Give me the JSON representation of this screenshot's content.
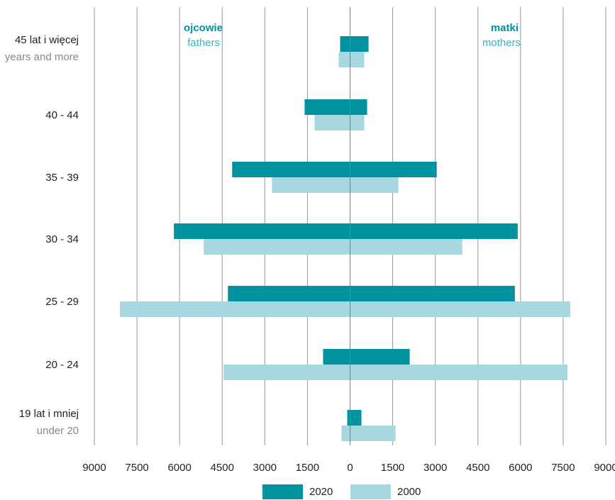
{
  "chart_data": {
    "type": "bar",
    "orientation": "horizontal-butterfly",
    "categories": [
      {
        "label": "45 lat i więcej",
        "sublabel": "years and more"
      },
      {
        "label": "40 - 44",
        "sublabel": ""
      },
      {
        "label": "35 - 39",
        "sublabel": ""
      },
      {
        "label": "30 - 34",
        "sublabel": ""
      },
      {
        "label": "25 - 29",
        "sublabel": ""
      },
      {
        "label": "20 - 24",
        "sublabel": ""
      },
      {
        "label": "19 lat i mniej",
        "sublabel": "under 20"
      }
    ],
    "sides": {
      "left": {
        "label": "ojcowie",
        "sublabel": "fathers"
      },
      "right": {
        "label": "matki",
        "sublabel": "mothers"
      }
    },
    "series": [
      {
        "name": "2020",
        "color": "#00929f",
        "fathers": [
          350,
          1600,
          4150,
          6200,
          4300,
          950,
          100
        ],
        "mothers": [
          650,
          600,
          3050,
          5900,
          5800,
          2100,
          400
        ]
      },
      {
        "name": "2000",
        "color": "#a7d8df",
        "fathers": [
          400,
          1250,
          2750,
          5150,
          8100,
          4450,
          300
        ],
        "mothers": [
          500,
          500,
          1700,
          3950,
          7750,
          7650,
          1600
        ]
      }
    ],
    "xticks": [
      "9000",
      "7500",
      "6000",
      "4500",
      "3000",
      "1500",
      "0",
      "1500",
      "3000",
      "4500",
      "6000",
      "7500",
      "9000"
    ],
    "xlim": [
      -9000,
      9000
    ],
    "grid": true,
    "legend_position": "bottom-center",
    "side_label_color": "#00929f",
    "side_sublabel_color": "#3bb3c0"
  }
}
